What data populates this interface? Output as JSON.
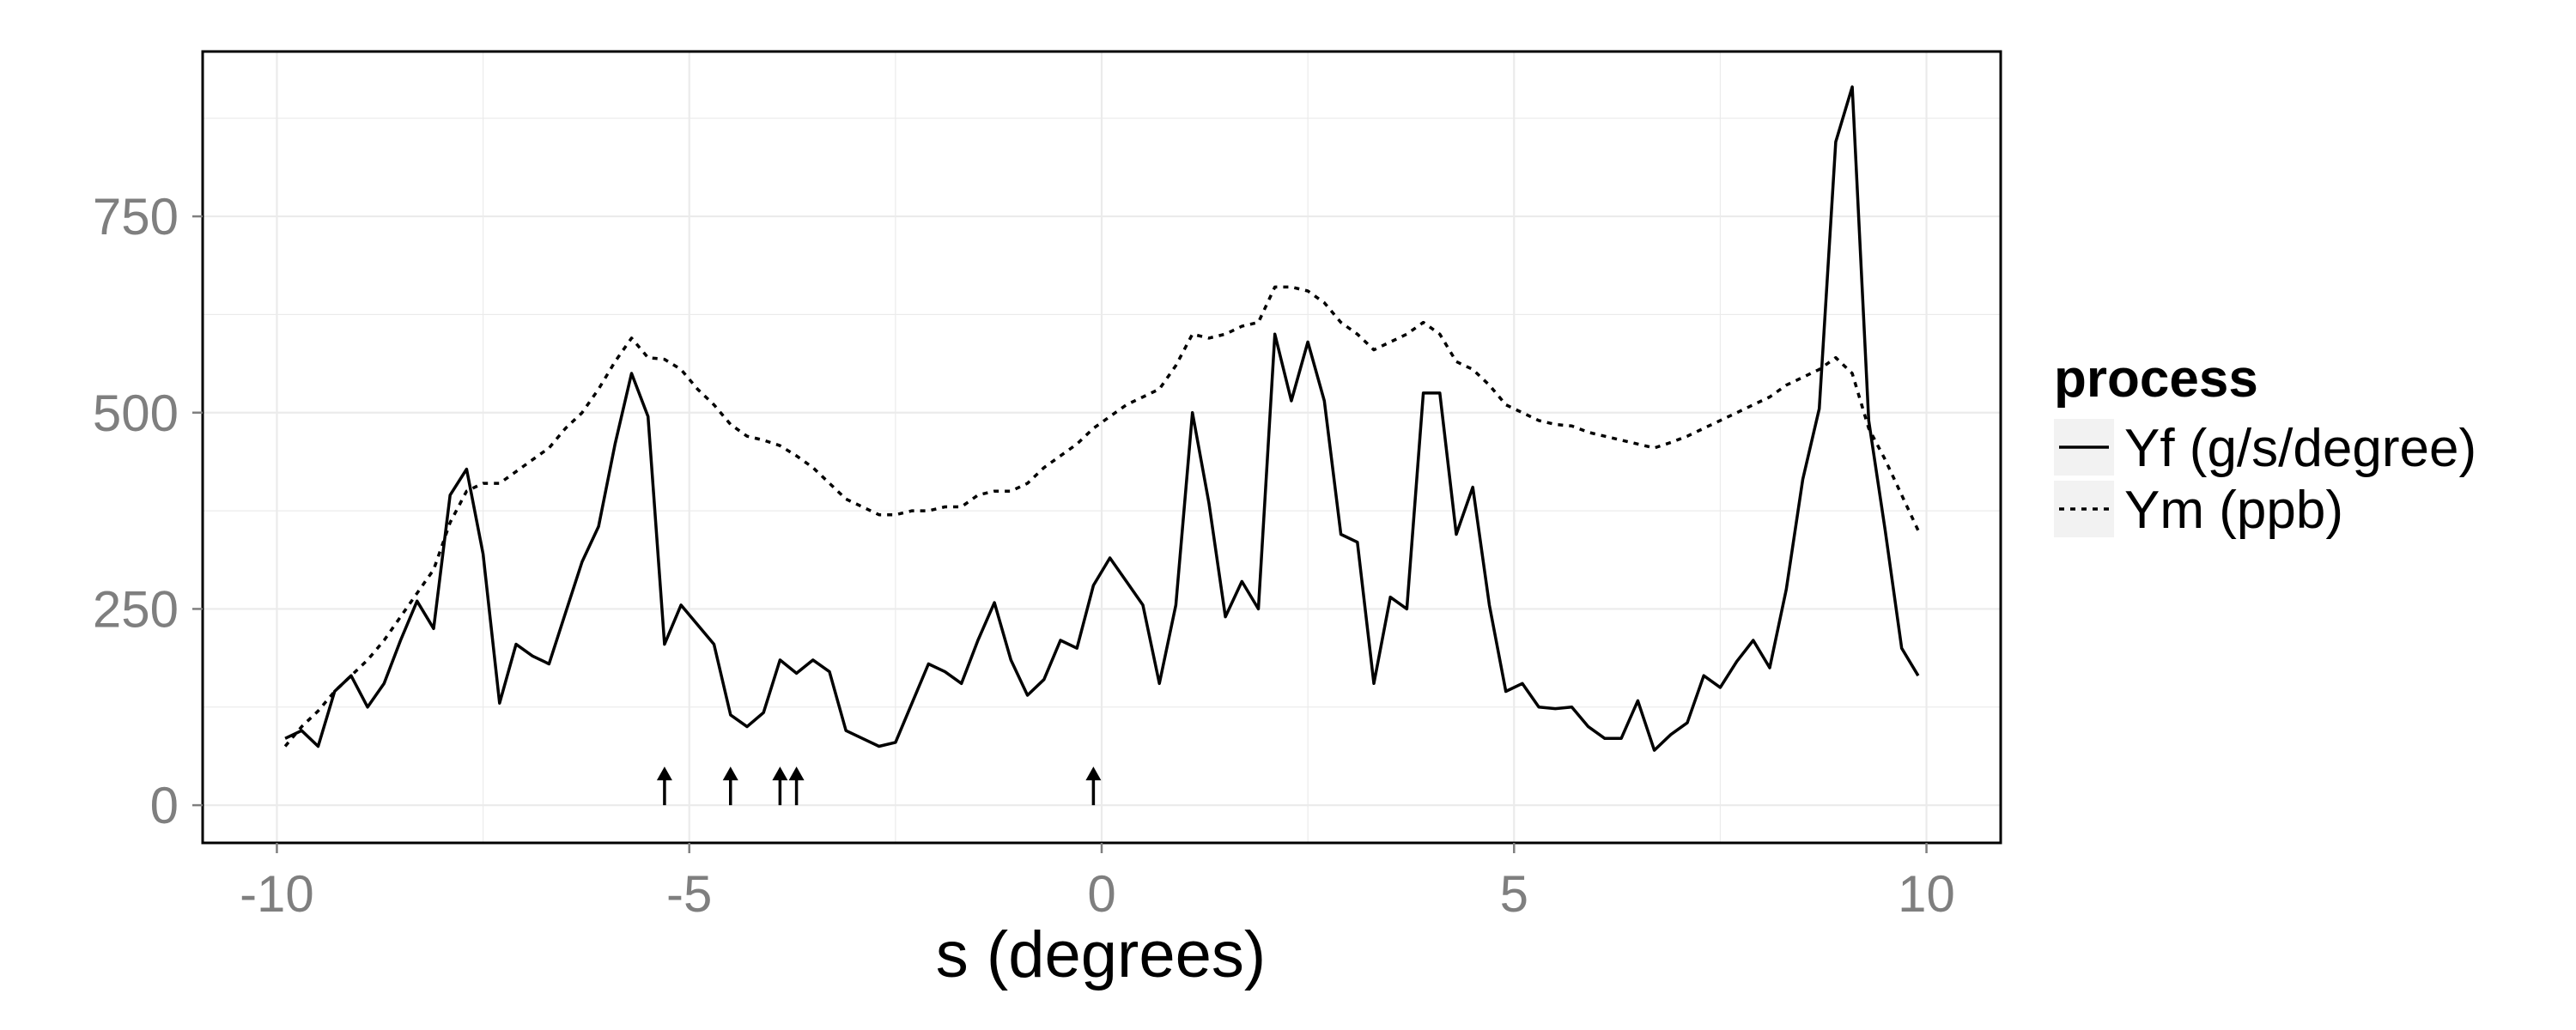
{
  "chart_data": {
    "type": "line",
    "title": "",
    "xlabel": "s (degrees)",
    "ylabel": "",
    "xlim": [
      -10.9,
      10.9
    ],
    "ylim": [
      -48,
      960
    ],
    "x_ticks": [
      -10,
      -5,
      0,
      5,
      10
    ],
    "x_tick_labels": [
      "-10",
      "-5",
      "0",
      "5",
      "10"
    ],
    "y_ticks": [
      0,
      250,
      500,
      750
    ],
    "y_tick_labels": [
      "0",
      "250",
      "500",
      "750"
    ],
    "grid": true,
    "legend": {
      "title": "process",
      "placement": "right"
    },
    "series": [
      {
        "name": "Yf (g/s/degree)",
        "line_style": "solid",
        "color": "#000000",
        "x": [
          -9.9,
          -9.7,
          -9.5,
          -9.3,
          -9.1,
          -8.9,
          -8.7,
          -8.5,
          -8.3,
          -8.1,
          -7.9,
          -7.7,
          -7.5,
          -7.3,
          -7.1,
          -6.9,
          -6.7,
          -6.5,
          -6.3,
          -6.1,
          -5.9,
          -5.7,
          -5.5,
          -5.3,
          -5.1,
          -4.9,
          -4.7,
          -4.5,
          -4.3,
          -4.1,
          -3.9,
          -3.7,
          -3.5,
          -3.3,
          -3.1,
          -2.9,
          -2.7,
          -2.5,
          -2.3,
          -2.1,
          -1.9,
          -1.7,
          -1.5,
          -1.3,
          -1.1,
          -0.9,
          -0.7,
          -0.5,
          -0.3,
          -0.1,
          0.1,
          0.3,
          0.5,
          0.7,
          0.9,
          1.1,
          1.3,
          1.5,
          1.7,
          1.9,
          2.1,
          2.3,
          2.5,
          2.7,
          2.9,
          3.1,
          3.3,
          3.5,
          3.7,
          3.9,
          4.1,
          4.3,
          4.5,
          4.7,
          4.9,
          5.1,
          5.3,
          5.5,
          5.7,
          5.9,
          6.1,
          6.3,
          6.5,
          6.7,
          6.9,
          7.1,
          7.3,
          7.5,
          7.7,
          7.9,
          8.1,
          8.3,
          8.5,
          8.7,
          8.9,
          9.1,
          9.3,
          9.5,
          9.7,
          9.9
        ],
        "values": [
          85,
          95,
          75,
          145,
          165,
          125,
          155,
          210,
          260,
          225,
          395,
          428,
          320,
          130,
          205,
          190,
          180,
          245,
          310,
          355,
          460,
          550,
          495,
          205,
          255,
          230,
          205,
          115,
          100,
          118,
          185,
          168,
          185,
          170,
          95,
          85,
          75,
          80,
          130,
          180,
          170,
          155,
          210,
          258,
          185,
          140,
          160,
          210,
          200,
          280,
          315,
          285,
          255,
          155,
          255,
          500,
          385,
          240,
          285,
          250,
          600,
          515,
          590,
          515,
          345,
          335,
          155,
          265,
          250,
          525,
          525,
          345,
          405,
          255,
          145,
          155,
          125,
          123,
          125,
          100,
          85,
          85,
          133,
          70,
          90,
          105,
          165,
          150,
          183,
          210,
          175,
          275,
          415,
          505,
          845,
          915,
          490,
          350,
          200,
          165
        ]
      },
      {
        "name": "Ym (ppb)",
        "line_style": "dashed",
        "color": "#000000",
        "x": [
          -9.9,
          -9.7,
          -9.5,
          -9.3,
          -9.1,
          -8.9,
          -8.7,
          -8.5,
          -8.3,
          -8.1,
          -7.9,
          -7.7,
          -7.5,
          -7.3,
          -7.1,
          -6.9,
          -6.7,
          -6.5,
          -6.3,
          -6.1,
          -5.9,
          -5.7,
          -5.5,
          -5.3,
          -5.1,
          -4.9,
          -4.7,
          -4.5,
          -4.3,
          -4.1,
          -3.9,
          -3.7,
          -3.5,
          -3.3,
          -3.1,
          -2.9,
          -2.7,
          -2.5,
          -2.3,
          -2.1,
          -1.9,
          -1.7,
          -1.5,
          -1.3,
          -1.1,
          -0.9,
          -0.7,
          -0.5,
          -0.3,
          -0.1,
          0.1,
          0.3,
          0.5,
          0.7,
          0.9,
          1.1,
          1.3,
          1.5,
          1.7,
          1.9,
          2.1,
          2.3,
          2.5,
          2.7,
          2.9,
          3.1,
          3.3,
          3.5,
          3.7,
          3.9,
          4.1,
          4.3,
          4.5,
          4.7,
          4.9,
          5.1,
          5.3,
          5.5,
          5.7,
          5.9,
          6.1,
          6.3,
          6.5,
          6.7,
          6.9,
          7.1,
          7.3,
          7.5,
          7.7,
          7.9,
          8.1,
          8.3,
          8.5,
          8.7,
          8.9,
          9.1,
          9.3,
          9.5,
          9.7,
          9.9
        ],
        "values": [
          75,
          100,
          120,
          145,
          165,
          185,
          210,
          240,
          270,
          300,
          360,
          400,
          410,
          410,
          425,
          440,
          455,
          480,
          500,
          530,
          565,
          595,
          570,
          568,
          555,
          530,
          510,
          485,
          470,
          465,
          458,
          445,
          430,
          410,
          390,
          380,
          370,
          370,
          375,
          375,
          380,
          380,
          395,
          400,
          400,
          410,
          430,
          445,
          460,
          480,
          495,
          510,
          520,
          530,
          560,
          600,
          595,
          600,
          610,
          615,
          660,
          660,
          655,
          640,
          615,
          600,
          580,
          590,
          600,
          615,
          600,
          565,
          555,
          535,
          510,
          500,
          490,
          485,
          483,
          475,
          470,
          465,
          460,
          455,
          462,
          470,
          480,
          490,
          500,
          510,
          520,
          535,
          545,
          555,
          570,
          550,
          480,
          440,
          395,
          350
        ]
      }
    ],
    "arrow_markers_x": [
      -5.3,
      -4.5,
      -3.9,
      -3.7,
      -0.1
    ]
  },
  "colors": {
    "background": "#ffffff",
    "panel_border": "#000000",
    "grid": "#ebebeb",
    "tick_text": "#7f7f7f",
    "legend_key_bg": "#f2f2f2"
  }
}
